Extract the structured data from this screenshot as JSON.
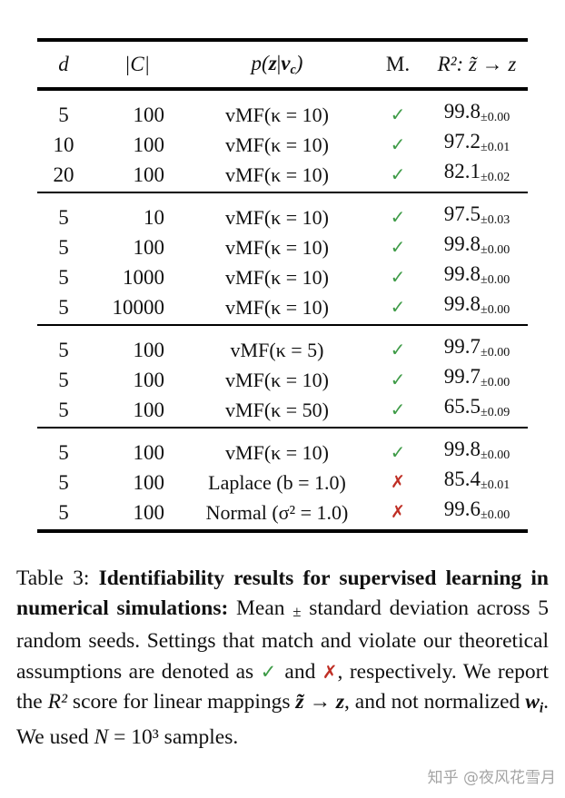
{
  "colors": {
    "check": "#3e9b47",
    "cross": "#bf2e24",
    "text": "#111111",
    "watermark": "#9b9b9b"
  },
  "symbols": {
    "check": "✓",
    "cross": "✗"
  },
  "table": {
    "headers": {
      "d": "d",
      "cardinality": "|C|",
      "dist_prefix": "p(",
      "dist_z": "z",
      "dist_bar": "|",
      "dist_v": "v",
      "dist_sub": "c",
      "dist_close": ")",
      "match": "M.",
      "r2": "R²: z̃ → z"
    },
    "groups": [
      {
        "rows": [
          {
            "d": "5",
            "c": "100",
            "dist": "vMF(κ = 10)",
            "match": "check",
            "r2": "99.8",
            "std": "±0.00"
          },
          {
            "d": "10",
            "c": "100",
            "dist": "vMF(κ = 10)",
            "match": "check",
            "r2": "97.2",
            "std": "±0.01"
          },
          {
            "d": "20",
            "c": "100",
            "dist": "vMF(κ = 10)",
            "match": "check",
            "r2": "82.1",
            "std": "±0.02"
          }
        ]
      },
      {
        "rows": [
          {
            "d": "5",
            "c": "10",
            "dist": "vMF(κ = 10)",
            "match": "check",
            "r2": "97.5",
            "std": "±0.03"
          },
          {
            "d": "5",
            "c": "100",
            "dist": "vMF(κ = 10)",
            "match": "check",
            "r2": "99.8",
            "std": "±0.00"
          },
          {
            "d": "5",
            "c": "1000",
            "dist": "vMF(κ = 10)",
            "match": "check",
            "r2": "99.8",
            "std": "±0.00"
          },
          {
            "d": "5",
            "c": "10000",
            "dist": "vMF(κ = 10)",
            "match": "check",
            "r2": "99.8",
            "std": "±0.00"
          }
        ]
      },
      {
        "rows": [
          {
            "d": "5",
            "c": "100",
            "dist": "vMF(κ = 5)",
            "match": "check",
            "r2": "99.7",
            "std": "±0.00"
          },
          {
            "d": "5",
            "c": "100",
            "dist": "vMF(κ = 10)",
            "match": "check",
            "r2": "99.7",
            "std": "±0.00"
          },
          {
            "d": "5",
            "c": "100",
            "dist": "vMF(κ = 50)",
            "match": "check",
            "r2": "65.5",
            "std": "±0.09"
          }
        ]
      },
      {
        "rows": [
          {
            "d": "5",
            "c": "100",
            "dist": "vMF(κ = 10)",
            "match": "check",
            "r2": "99.8",
            "std": "±0.00"
          },
          {
            "d": "5",
            "c": "100",
            "dist": "Laplace (b = 1.0)",
            "match": "cross",
            "r2": "85.4",
            "std": "±0.01"
          },
          {
            "d": "5",
            "c": "100",
            "dist": "Normal (σ² = 1.0)",
            "match": "cross",
            "r2": "99.6",
            "std": "±0.00"
          }
        ]
      }
    ]
  },
  "caption": {
    "segments": [
      {
        "style": "normal",
        "text": "Table 3: "
      },
      {
        "style": "bold",
        "text": "Identifiability results for supervised learning in numerical simulations: "
      },
      {
        "style": "normal",
        "text": "Mean "
      },
      {
        "style": "pm",
        "text": "±"
      },
      {
        "style": "normal",
        "text": " standard deviation across 5 random seeds. Settings that match and violate our theoretical assumptions are denoted as "
      },
      {
        "style": "check",
        "text": "✓"
      },
      {
        "style": "normal",
        "text": " and "
      },
      {
        "style": "cross",
        "text": "✗"
      },
      {
        "style": "normal",
        "text": ", respectively. We report the "
      },
      {
        "style": "math",
        "text": "R²"
      },
      {
        "style": "normal",
        "text": " score for linear mappings "
      },
      {
        "style": "math-bold",
        "text": "z̃ → z"
      },
      {
        "style": "normal",
        "text": ", and not normalized "
      },
      {
        "style": "math-bold",
        "text": "w"
      },
      {
        "style": "sub-i",
        "text": "i"
      },
      {
        "style": "normal",
        "text": ". We used "
      },
      {
        "style": "math",
        "text": "N"
      },
      {
        "style": "normal",
        "text": " = 10³ samples."
      }
    ]
  },
  "watermark": {
    "text": "知乎 @夜风花雪月"
  }
}
